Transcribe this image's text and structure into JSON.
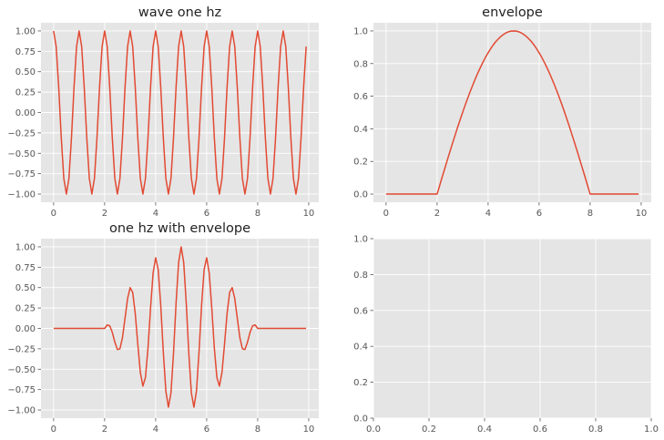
{
  "chart_data": [
    {
      "type": "line",
      "title": "wave one hz",
      "xlabel": "",
      "ylabel": "",
      "xlim": [
        -0.495,
        10.395
      ],
      "ylim": [
        -1.1,
        1.1
      ],
      "xticks": [
        0,
        2,
        4,
        6,
        8,
        10
      ],
      "xtick_labels": [
        "0",
        "2",
        "4",
        "6",
        "8",
        "10"
      ],
      "yticks": [
        -1.0,
        -0.75,
        -0.5,
        -0.25,
        0.0,
        0.25,
        0.5,
        0.75,
        1.0
      ],
      "ytick_labels": [
        "−1.00",
        "−0.75",
        "−0.50",
        "−0.25",
        "0.00",
        "0.25",
        "0.50",
        "0.75",
        "1.00"
      ],
      "grid": true,
      "series": [
        {
          "color": "#e24a33",
          "x": [
            0.0,
            0.1,
            0.2,
            0.3,
            0.4,
            0.5,
            0.6,
            0.7,
            0.8,
            0.9,
            1.0,
            1.1,
            1.2,
            1.3,
            1.4,
            1.5,
            1.6,
            1.7,
            1.8,
            1.9,
            2.0,
            2.1,
            2.2,
            2.3,
            2.4,
            2.5,
            2.6,
            2.7,
            2.8,
            2.9,
            3.0,
            3.1,
            3.2,
            3.3,
            3.4,
            3.5,
            3.6,
            3.7,
            3.8,
            3.9,
            4.0,
            4.1,
            4.2,
            4.3,
            4.4,
            4.5,
            4.6,
            4.7,
            4.8,
            4.9,
            5.0,
            5.1,
            5.2,
            5.3,
            5.4,
            5.5,
            5.6,
            5.7,
            5.8,
            5.9,
            6.0,
            6.1,
            6.2,
            6.3,
            6.4,
            6.5,
            6.6,
            6.7,
            6.8,
            6.9,
            7.0,
            7.1,
            7.2,
            7.3,
            7.4,
            7.5,
            7.6,
            7.7,
            7.8,
            7.9,
            8.0,
            8.1,
            8.2,
            8.3,
            8.4,
            8.5,
            8.6,
            8.7,
            8.8,
            8.9,
            9.0,
            9.1,
            9.2,
            9.3,
            9.4,
            9.5,
            9.6,
            9.7,
            9.8,
            9.9
          ],
          "y": [
            1.0,
            0.809,
            0.309,
            -0.309,
            -0.809,
            -1.0,
            -0.809,
            -0.309,
            0.309,
            0.809,
            1.0,
            0.809,
            0.309,
            -0.309,
            -0.809,
            -1.0,
            -0.809,
            -0.309,
            0.309,
            0.809,
            1.0,
            0.809,
            0.309,
            -0.309,
            -0.809,
            -1.0,
            -0.809,
            -0.309,
            0.309,
            0.809,
            1.0,
            0.809,
            0.309,
            -0.309,
            -0.809,
            -1.0,
            -0.809,
            -0.309,
            0.309,
            0.809,
            1.0,
            0.809,
            0.309,
            -0.309,
            -0.809,
            -1.0,
            -0.809,
            -0.309,
            0.309,
            0.809,
            1.0,
            0.809,
            0.309,
            -0.309,
            -0.809,
            -1.0,
            -0.809,
            -0.309,
            0.309,
            0.809,
            1.0,
            0.809,
            0.309,
            -0.309,
            -0.809,
            -1.0,
            -0.809,
            -0.309,
            0.309,
            0.809,
            1.0,
            0.809,
            0.309,
            -0.309,
            -0.809,
            -1.0,
            -0.809,
            -0.309,
            0.309,
            0.809,
            1.0,
            0.809,
            0.309,
            -0.309,
            -0.809,
            -1.0,
            -0.809,
            -0.309,
            0.309,
            0.809,
            1.0,
            0.809,
            0.309,
            -0.309,
            -0.809,
            -1.0,
            -0.809,
            -0.309,
            0.309,
            0.809
          ]
        }
      ]
    },
    {
      "type": "line",
      "title": "envelope",
      "xlabel": "",
      "ylabel": "",
      "xlim": [
        -0.495,
        10.395
      ],
      "ylim": [
        -0.05,
        1.05
      ],
      "xticks": [
        0,
        2,
        4,
        6,
        8,
        10
      ],
      "xtick_labels": [
        "0",
        "2",
        "4",
        "6",
        "8",
        "10"
      ],
      "yticks": [
        0.0,
        0.2,
        0.4,
        0.6,
        0.8,
        1.0
      ],
      "ytick_labels": [
        "0.0",
        "0.2",
        "0.4",
        "0.6",
        "0.8",
        "1.0"
      ],
      "grid": true,
      "series": [
        {
          "color": "#e24a33",
          "x": [
            0.0,
            0.1,
            0.2,
            0.3,
            0.4,
            0.5,
            0.6,
            0.7,
            0.8,
            0.9,
            1.0,
            1.1,
            1.2,
            1.3,
            1.4,
            1.5,
            1.6,
            1.7,
            1.8,
            1.9,
            2.0,
            2.1,
            2.2,
            2.3,
            2.4,
            2.5,
            2.6,
            2.7,
            2.8,
            2.9,
            3.0,
            3.1,
            3.2,
            3.3,
            3.4,
            3.5,
            3.6,
            3.7,
            3.8,
            3.9,
            4.0,
            4.1,
            4.2,
            4.3,
            4.4,
            4.5,
            4.6,
            4.7,
            4.8,
            4.9,
            5.0,
            5.1,
            5.2,
            5.3,
            5.4,
            5.5,
            5.6,
            5.7,
            5.8,
            5.9,
            6.0,
            6.1,
            6.2,
            6.3,
            6.4,
            6.5,
            6.6,
            6.7,
            6.8,
            6.9,
            7.0,
            7.1,
            7.2,
            7.3,
            7.4,
            7.5,
            7.6,
            7.7,
            7.8,
            7.9,
            8.0,
            8.1,
            8.2,
            8.3,
            8.4,
            8.5,
            8.6,
            8.7,
            8.8,
            8.9,
            9.0,
            9.1,
            9.2,
            9.3,
            9.4,
            9.5,
            9.6,
            9.7,
            9.8,
            9.9
          ],
          "y": [
            0.0,
            0.0,
            0.0,
            0.0,
            0.0,
            0.0,
            0.0,
            0.0,
            0.0,
            0.0,
            0.0,
            0.0,
            0.0,
            0.0,
            0.0,
            0.0,
            0.0,
            0.0,
            0.0,
            0.0,
            0.0,
            0.052,
            0.105,
            0.156,
            0.208,
            0.259,
            0.309,
            0.358,
            0.407,
            0.454,
            0.5,
            0.545,
            0.588,
            0.629,
            0.669,
            0.707,
            0.743,
            0.777,
            0.809,
            0.839,
            0.866,
            0.891,
            0.914,
            0.934,
            0.951,
            0.966,
            0.978,
            0.988,
            0.995,
            0.999,
            1.0,
            0.999,
            0.995,
            0.988,
            0.978,
            0.966,
            0.951,
            0.934,
            0.914,
            0.891,
            0.866,
            0.839,
            0.809,
            0.777,
            0.743,
            0.707,
            0.669,
            0.629,
            0.588,
            0.545,
            0.5,
            0.454,
            0.407,
            0.358,
            0.309,
            0.259,
            0.208,
            0.156,
            0.105,
            0.052,
            0.0,
            0.0,
            0.0,
            0.0,
            0.0,
            0.0,
            0.0,
            0.0,
            0.0,
            0.0,
            0.0,
            0.0,
            0.0,
            0.0,
            0.0,
            0.0,
            0.0,
            0.0,
            0.0,
            0.0
          ]
        }
      ]
    },
    {
      "type": "line",
      "title": "one hz with envelope",
      "xlabel": "",
      "ylabel": "",
      "xlim": [
        -0.495,
        10.395
      ],
      "ylim": [
        -1.1,
        1.1
      ],
      "xticks": [
        0,
        2,
        4,
        6,
        8,
        10
      ],
      "xtick_labels": [
        "0",
        "2",
        "4",
        "6",
        "8",
        "10"
      ],
      "yticks": [
        -1.0,
        -0.75,
        -0.5,
        -0.25,
        0.0,
        0.25,
        0.5,
        0.75,
        1.0
      ],
      "ytick_labels": [
        "−1.00",
        "−0.75",
        "−0.50",
        "−0.25",
        "0.00",
        "0.25",
        "0.50",
        "0.75",
        "1.00"
      ],
      "grid": true,
      "series": [
        {
          "color": "#e24a33",
          "x": [
            0.0,
            0.1,
            0.2,
            0.3,
            0.4,
            0.5,
            0.6,
            0.7,
            0.8,
            0.9,
            1.0,
            1.1,
            1.2,
            1.3,
            1.4,
            1.5,
            1.6,
            1.7,
            1.8,
            1.9,
            2.0,
            2.1,
            2.2,
            2.3,
            2.4,
            2.5,
            2.6,
            2.7,
            2.8,
            2.9,
            3.0,
            3.1,
            3.2,
            3.3,
            3.4,
            3.5,
            3.6,
            3.7,
            3.8,
            3.9,
            4.0,
            4.1,
            4.2,
            4.3,
            4.4,
            4.5,
            4.6,
            4.7,
            4.8,
            4.9,
            5.0,
            5.1,
            5.2,
            5.3,
            5.4,
            5.5,
            5.6,
            5.7,
            5.8,
            5.9,
            6.0,
            6.1,
            6.2,
            6.3,
            6.4,
            6.5,
            6.6,
            6.7,
            6.8,
            6.9,
            7.0,
            7.1,
            7.2,
            7.3,
            7.4,
            7.5,
            7.6,
            7.7,
            7.8,
            7.9,
            8.0,
            8.1,
            8.2,
            8.3,
            8.4,
            8.5,
            8.6,
            8.7,
            8.8,
            8.9,
            9.0,
            9.1,
            9.2,
            9.3,
            9.4,
            9.5,
            9.6,
            9.7,
            9.8,
            9.9
          ],
          "y": [
            0.0,
            0.0,
            0.0,
            0.0,
            0.0,
            0.0,
            0.0,
            0.0,
            0.0,
            0.0,
            0.0,
            0.0,
            0.0,
            0.0,
            0.0,
            0.0,
            0.0,
            0.0,
            0.0,
            0.0,
            0.0,
            0.042,
            0.032,
            -0.048,
            -0.168,
            -0.259,
            -0.25,
            -0.111,
            0.126,
            0.367,
            0.5,
            0.441,
            0.182,
            -0.194,
            -0.541,
            -0.707,
            -0.601,
            -0.24,
            0.25,
            0.679,
            0.866,
            0.721,
            0.282,
            -0.289,
            -0.769,
            -0.966,
            -0.791,
            -0.305,
            0.307,
            0.808,
            1.0,
            0.808,
            0.307,
            -0.305,
            -0.791,
            -0.966,
            -0.769,
            -0.289,
            0.282,
            0.721,
            0.866,
            0.679,
            0.25,
            -0.24,
            -0.601,
            -0.707,
            -0.541,
            -0.194,
            0.182,
            0.441,
            0.5,
            0.367,
            0.126,
            -0.111,
            -0.25,
            -0.259,
            -0.168,
            -0.048,
            0.032,
            0.042,
            0.0,
            0.0,
            0.0,
            0.0,
            0.0,
            0.0,
            0.0,
            0.0,
            0.0,
            0.0,
            0.0,
            0.0,
            0.0,
            0.0,
            0.0,
            0.0,
            0.0,
            0.0,
            0.0,
            0.0
          ]
        }
      ]
    },
    {
      "type": "line",
      "title": "",
      "xlabel": "",
      "ylabel": "",
      "xlim": [
        0.0,
        1.0
      ],
      "ylim": [
        0.0,
        1.0
      ],
      "xticks": [
        0.0,
        0.2,
        0.4,
        0.6,
        0.8,
        1.0
      ],
      "xtick_labels": [
        "0.0",
        "0.2",
        "0.4",
        "0.6",
        "0.8",
        "1.0"
      ],
      "yticks": [
        0.0,
        0.2,
        0.4,
        0.6,
        0.8,
        1.0
      ],
      "ytick_labels": [
        "0.0",
        "0.2",
        "0.4",
        "0.6",
        "0.8",
        "1.0"
      ],
      "grid": true,
      "series": []
    }
  ]
}
